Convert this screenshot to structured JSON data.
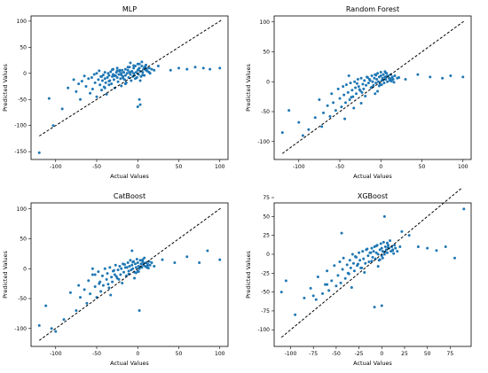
{
  "chart_data": [
    {
      "type": "scatter",
      "title": "MLP",
      "xlabel": "Actual Values",
      "ylabel": "Predicted Values",
      "xlim": [
        -130,
        110
      ],
      "ylim": [
        -165,
        110
      ],
      "xticks": [
        -100,
        -50,
        0,
        50,
        100
      ],
      "yticks": [
        -150,
        -100,
        -50,
        0,
        50,
        100
      ],
      "reference_line": {
        "from": [
          -120,
          -120
        ],
        "to": [
          102,
          102
        ],
        "style": "dashed",
        "color": "#000000"
      },
      "point_color": "#1f77b4",
      "x": [
        -120,
        -108,
        -103,
        -92,
        -85,
        -78,
        -75,
        -72,
        -70,
        -68,
        -65,
        -63,
        -60,
        -58,
        -56,
        -55,
        -53,
        -52,
        -50,
        -50,
        -48,
        -47,
        -46,
        -45,
        -44,
        -43,
        -42,
        -41,
        -40,
        -40,
        -39,
        -38,
        -37,
        -36,
        -35,
        -35,
        -34,
        -33,
        -32,
        -31,
        -30,
        -30,
        -29,
        -28,
        -27,
        -26,
        -25,
        -25,
        -24,
        -23,
        -22,
        -21,
        -20,
        -20,
        -19,
        -18,
        -17,
        -16,
        -15,
        -15,
        -14,
        -13,
        -12,
        -11,
        -10,
        -10,
        -9,
        -8,
        -7,
        -6,
        -5,
        -5,
        -4,
        -3,
        -2,
        -1,
        0,
        0,
        1,
        2,
        3,
        4,
        5,
        5,
        6,
        7,
        8,
        9,
        10,
        10,
        12,
        14,
        15,
        17,
        20,
        -35,
        -28,
        -22,
        -18,
        -12,
        -8,
        -3,
        2,
        6,
        11,
        -40,
        -25,
        -15,
        -5,
        3,
        8,
        14,
        -44,
        -31,
        -20,
        -9,
        1,
        9,
        0,
        2,
        3,
        50,
        60,
        70,
        80,
        88,
        100,
        25,
        40
      ],
      "y": [
        -152,
        -48,
        -100,
        -68,
        -28,
        -12,
        -35,
        -20,
        -50,
        -15,
        -5,
        -25,
        -10,
        -38,
        -8,
        -30,
        -2,
        -18,
        0,
        -45,
        -12,
        5,
        -22,
        -6,
        -32,
        -14,
        -3,
        -26,
        -10,
        2,
        -18,
        -40,
        -8,
        0,
        -22,
        -4,
        -14,
        3,
        -20,
        -6,
        -2,
        8,
        -12,
        -28,
        -4,
        2,
        -8,
        10,
        -16,
        -2,
        4,
        -10,
        0,
        -24,
        6,
        -6,
        2,
        -12,
        8,
        -4,
        -18,
        0,
        6,
        -8,
        2,
        12,
        -2,
        -14,
        4,
        -6,
        10,
        0,
        -4,
        14,
        2,
        -8,
        6,
        18,
        -2,
        10,
        4,
        -6,
        14,
        22,
        2,
        8,
        -4,
        12,
        6,
        16,
        4,
        10,
        0,
        8,
        6,
        -15,
        -5,
        6,
        -9,
        12,
        3,
        -10,
        18,
        -3,
        9,
        -28,
        5,
        -20,
        15,
        -14,
        11,
        2,
        -6,
        7,
        -3,
        20,
        8,
        13,
        -64,
        -50,
        -60,
        10,
        8,
        12,
        10,
        8,
        10,
        14,
        6
      ]
    },
    {
      "type": "scatter",
      "title": "Random Forest",
      "xlabel": "Actual Values",
      "ylabel": "Predicted Values",
      "xlim": [
        -130,
        110
      ],
      "ylim": [
        -130,
        110
      ],
      "xticks": [
        -100,
        -50,
        0,
        50,
        100
      ],
      "yticks": [
        -100,
        -50,
        0,
        50,
        100
      ],
      "reference_line": {
        "from": [
          -120,
          -120
        ],
        "to": [
          102,
          102
        ],
        "style": "dashed",
        "color": "#000000"
      },
      "point_color": "#1f77b4",
      "x": [
        -120,
        -112,
        -100,
        -95,
        -88,
        -80,
        -75,
        -72,
        -70,
        -65,
        -62,
        -60,
        -58,
        -55,
        -52,
        -50,
        -48,
        -46,
        -45,
        -43,
        -42,
        -40,
        -38,
        -37,
        -35,
        -34,
        -32,
        -31,
        -30,
        -28,
        -27,
        -25,
        -24,
        -22,
        -21,
        -20,
        -18,
        -17,
        -15,
        -14,
        -12,
        -11,
        -10,
        -9,
        -8,
        -7,
        -6,
        -5,
        -4,
        -3,
        -2,
        -1,
        0,
        0,
        1,
        2,
        3,
        4,
        5,
        6,
        7,
        8,
        9,
        10,
        11,
        12,
        14,
        15,
        17,
        20,
        -36,
        -29,
        -23,
        -16,
        -11,
        -6,
        -2,
        3,
        7,
        12,
        -33,
        -26,
        -19,
        -13,
        -4,
        1,
        6,
        13,
        -44,
        -39,
        -24,
        -7,
        5,
        16,
        22,
        30,
        45,
        60,
        75,
        85,
        100
      ],
      "y": [
        -85,
        -48,
        -68,
        -90,
        -80,
        -60,
        -30,
        -75,
        -52,
        -40,
        -58,
        -20,
        -35,
        -48,
        -12,
        -28,
        -42,
        -8,
        -22,
        -35,
        -5,
        -18,
        -30,
        -2,
        -14,
        -25,
        0,
        -10,
        -20,
        4,
        -8,
        -15,
        6,
        -4,
        -12,
        2,
        -6,
        8,
        -2,
        4,
        -10,
        10,
        0,
        -6,
        6,
        12,
        -2,
        4,
        14,
        0,
        8,
        -4,
        10,
        16,
        2,
        6,
        12,
        -2,
        8,
        4,
        14,
        0,
        10,
        6,
        2,
        12,
        8,
        4,
        10,
        6,
        -26,
        -3,
        -18,
        7,
        -9,
        11,
        -7,
        3,
        9,
        5,
        -44,
        -13,
        -24,
        2,
        -16,
        -5,
        15,
        1,
        -62,
        10,
        -36,
        -20,
        17,
        -1,
        7,
        4,
        12,
        8,
        6,
        10,
        8
      ]
    },
    {
      "type": "scatter",
      "title": "CatBoost",
      "xlabel": "Actual Values",
      "ylabel": "Predicted Values",
      "xlim": [
        -130,
        110
      ],
      "ylim": [
        -130,
        110
      ],
      "xticks": [
        -100,
        -50,
        0,
        50,
        100
      ],
      "yticks": [
        -100,
        -50,
        0,
        50,
        100
      ],
      "reference_line": {
        "from": [
          -120,
          -120
        ],
        "to": [
          102,
          102
        ],
        "style": "dashed",
        "color": "#000000"
      },
      "point_color": "#1f77b4",
      "x": [
        -120,
        -112,
        -105,
        -100,
        -90,
        -82,
        -75,
        -72,
        -70,
        -65,
        -62,
        -60,
        -58,
        -55,
        -52,
        -50,
        -48,
        -46,
        -45,
        -43,
        -42,
        -40,
        -38,
        -37,
        -35,
        -34,
        -32,
        -31,
        -30,
        -28,
        -27,
        -25,
        -24,
        -22,
        -21,
        -20,
        -18,
        -17,
        -15,
        -14,
        -12,
        -11,
        -10,
        -9,
        -8,
        -7,
        -6,
        -5,
        -4,
        -3,
        -2,
        -1,
        0,
        0,
        1,
        2,
        3,
        4,
        5,
        6,
        7,
        8,
        9,
        10,
        11,
        12,
        14,
        15,
        17,
        20,
        -36,
        -29,
        -23,
        -16,
        -11,
        -6,
        -2,
        3,
        7,
        12,
        -33,
        -26,
        -19,
        -13,
        -4,
        1,
        6,
        13,
        -55,
        -52,
        -47,
        -7,
        2,
        30,
        45,
        60,
        75,
        85,
        100
      ],
      "y": [
        -95,
        -62,
        -100,
        -105,
        -85,
        -40,
        -70,
        -28,
        -48,
        -35,
        -58,
        -20,
        -42,
        -10,
        -30,
        -48,
        -5,
        -22,
        -38,
        -12,
        -28,
        0,
        -18,
        -8,
        -32,
        2,
        -14,
        -22,
        -4,
        -10,
        6,
        -16,
        -2,
        4,
        -10,
        0,
        8,
        -6,
        2,
        -12,
        10,
        -4,
        4,
        14,
        -2,
        6,
        0,
        12,
        -6,
        8,
        2,
        16,
        -4,
        10,
        4,
        0,
        14,
        8,
        2,
        12,
        6,
        18,
        4,
        10,
        2,
        8,
        12,
        6,
        10,
        4,
        -26,
        -3,
        -18,
        7,
        -9,
        11,
        -7,
        3,
        9,
        5,
        -44,
        -13,
        -24,
        2,
        -16,
        -5,
        15,
        1,
        0,
        -10,
        -25,
        30,
        -70,
        15,
        10,
        20,
        10,
        30,
        15
      ]
    },
    {
      "type": "scatter",
      "title": "XGBoost",
      "xlabel": "Actual Values",
      "ylabel": "Predicted Values",
      "xlim": [
        -118,
        98
      ],
      "ylim": [
        -122,
        68
      ],
      "xticks": [
        -100,
        -75,
        -50,
        -25,
        0,
        25,
        50,
        75
      ],
      "yticks": [
        -100,
        -75,
        -50,
        -25,
        0,
        25,
        50,
        75
      ],
      "reference_line": {
        "from": [
          -110,
          -110
        ],
        "to": [
          88,
          88
        ],
        "style": "dashed",
        "color": "#000000"
      },
      "point_color": "#1f77b4",
      "x": [
        -110,
        -105,
        -95,
        -85,
        -78,
        -72,
        -70,
        -65,
        -62,
        -60,
        -58,
        -55,
        -52,
        -50,
        -48,
        -46,
        -45,
        -43,
        -42,
        -40,
        -38,
        -37,
        -35,
        -34,
        -32,
        -31,
        -30,
        -28,
        -27,
        -25,
        -24,
        -22,
        -21,
        -20,
        -18,
        -17,
        -15,
        -14,
        -12,
        -11,
        -10,
        -9,
        -8,
        -7,
        -6,
        -5,
        -4,
        -3,
        -2,
        -1,
        0,
        0,
        1,
        2,
        3,
        4,
        5,
        6,
        7,
        8,
        9,
        10,
        11,
        12,
        14,
        15,
        17,
        20,
        -36,
        -29,
        -23,
        -16,
        -11,
        -6,
        -2,
        3,
        7,
        12,
        -33,
        -26,
        -19,
        -13,
        -4,
        1,
        6,
        13,
        -75,
        -60,
        -44,
        -8,
        0,
        3,
        22,
        30,
        40,
        50,
        60,
        70,
        80,
        90
      ],
      "y": [
        -50,
        -35,
        -80,
        -58,
        -45,
        -60,
        -30,
        -52,
        -40,
        -22,
        -48,
        -35,
        -15,
        -42,
        -28,
        -10,
        -38,
        -20,
        -5,
        -32,
        -14,
        -25,
        -8,
        -18,
        0,
        -12,
        -22,
        -4,
        -15,
        2,
        -8,
        -18,
        4,
        -6,
        -12,
        6,
        -2,
        -10,
        2,
        8,
        -4,
        4,
        10,
        -6,
        2,
        12,
        0,
        -8,
        6,
        14,
        -2,
        8,
        4,
        16,
        0,
        10,
        6,
        2,
        12,
        8,
        18,
        4,
        10,
        6,
        12,
        8,
        4,
        10,
        -26,
        -3,
        -18,
        7,
        -9,
        11,
        -7,
        3,
        9,
        5,
        -44,
        -13,
        -24,
        2,
        -16,
        -5,
        15,
        1,
        -55,
        -40,
        28,
        -70,
        -68,
        50,
        30,
        25,
        10,
        8,
        5,
        10,
        -5,
        60
      ]
    }
  ]
}
